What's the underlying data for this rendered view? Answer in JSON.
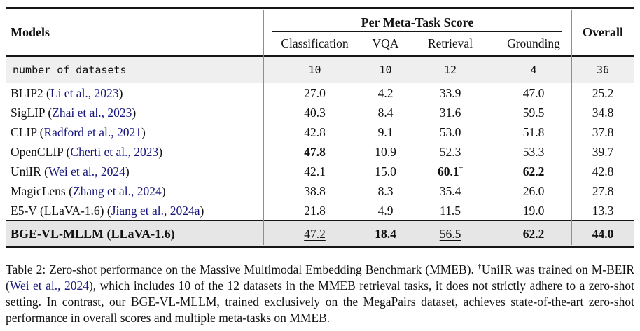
{
  "colors": {
    "link": "#17177e",
    "row_shade": "#efefef",
    "highlight_shade": "#e6e6e6",
    "rule": "#161616",
    "vline": "#8f8f8f"
  },
  "table": {
    "header": {
      "models": "Models",
      "meta_group": "Per Meta-Task Score",
      "columns": [
        "Classification",
        "VQA",
        "Retrieval",
        "Grounding"
      ],
      "overall": "Overall"
    },
    "datasets_row": {
      "label": "number of datasets",
      "values": [
        "10",
        "10",
        "12",
        "4",
        "36"
      ]
    },
    "rows": [
      {
        "pre": "BLIP2 (",
        "cite": "Li et al., 2023",
        "post": ")",
        "cells": [
          {
            "v": "27.0"
          },
          {
            "v": "4.2"
          },
          {
            "v": "33.9"
          },
          {
            "v": "47.0"
          },
          {
            "v": "25.2"
          }
        ]
      },
      {
        "pre": "SigLIP (",
        "cite": "Zhai et al., 2023",
        "post": ")",
        "cells": [
          {
            "v": "40.3"
          },
          {
            "v": "8.4"
          },
          {
            "v": "31.6"
          },
          {
            "v": "59.5"
          },
          {
            "v": "34.8"
          }
        ]
      },
      {
        "pre": "CLIP (",
        "cite": "Radford et al., 2021",
        "post": ")",
        "cells": [
          {
            "v": "42.8"
          },
          {
            "v": "9.1"
          },
          {
            "v": "53.0"
          },
          {
            "v": "51.8"
          },
          {
            "v": "37.8"
          }
        ]
      },
      {
        "pre": "OpenCLIP (",
        "cite": "Cherti et al., 2023",
        "post": ")",
        "cells": [
          {
            "v": "47.8",
            "b": true
          },
          {
            "v": "10.9"
          },
          {
            "v": "52.3"
          },
          {
            "v": "53.3"
          },
          {
            "v": "39.7"
          }
        ]
      },
      {
        "pre": "UniIR (",
        "cite": "Wei et al., 2024",
        "post": ")",
        "cells": [
          {
            "v": "42.1"
          },
          {
            "v": "15.0",
            "u": true
          },
          {
            "v": "60.1",
            "b": true,
            "sup": "†"
          },
          {
            "v": "62.2",
            "b": true
          },
          {
            "v": "42.8",
            "u": true
          }
        ]
      },
      {
        "pre": "MagicLens (",
        "cite": "Zhang et al., 2024",
        "post": ")",
        "cells": [
          {
            "v": "38.8"
          },
          {
            "v": "8.3"
          },
          {
            "v": "35.4"
          },
          {
            "v": "26.0"
          },
          {
            "v": "27.8"
          }
        ]
      },
      {
        "pre": "E5-V (LLaVA-1.6) (",
        "cite": "Jiang et al., 2024a",
        "post": ")",
        "cells": [
          {
            "v": "21.8"
          },
          {
            "v": "4.9"
          },
          {
            "v": "11.5"
          },
          {
            "v": "19.0"
          },
          {
            "v": "13.3"
          }
        ]
      }
    ],
    "highlight_row": {
      "pre": "BGE-VL-MLLM (LLaVA-1.6)",
      "cite": "",
      "post": "",
      "cells": [
        {
          "v": "47.2",
          "u": true
        },
        {
          "v": "18.4",
          "b": true
        },
        {
          "v": "56.5",
          "u": true
        },
        {
          "v": "62.2",
          "b": true
        },
        {
          "v": "44.0",
          "b": true
        }
      ]
    }
  },
  "caption": {
    "parts": [
      {
        "t": "Table 2: Zero-shot performance on the Massive Multimodal Embedding Benchmark (MMEB). ",
        "s": "plain"
      },
      {
        "t": "†",
        "s": "sup"
      },
      {
        "t": "UniIR was trained on M-BEIR (",
        "s": "plain"
      },
      {
        "t": "Wei et al., 2024",
        "s": "link"
      },
      {
        "t": "), which includes 10 of the 12 datasets in the MMEB retrieval tasks, it does not strictly adhere to a zero-shot setting. In contrast, our BGE-VL-MLLM, trained exclusively on the MegaPairs dataset, achieves state-of-the-art zero-shot performance in overall scores and multiple meta-tasks on MMEB.",
        "s": "plain"
      }
    ]
  }
}
